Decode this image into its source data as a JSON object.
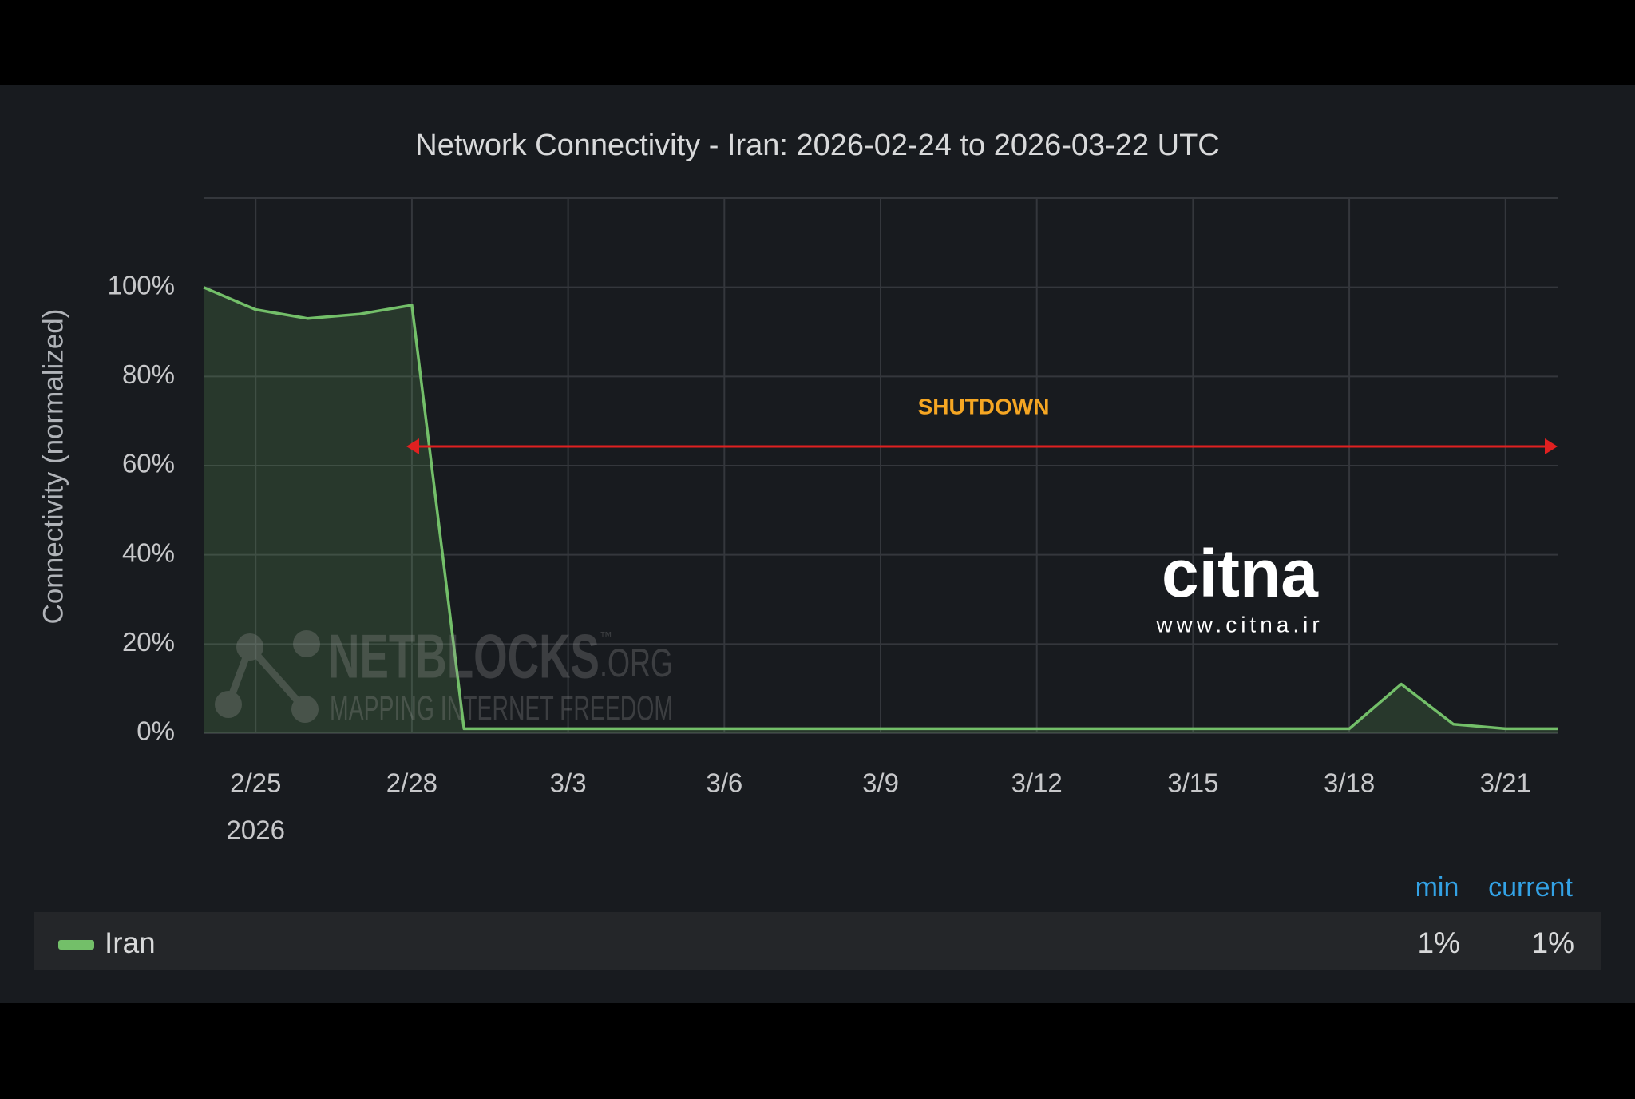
{
  "chart_data": {
    "type": "line",
    "title": "Network Connectivity - Iran: 2026-02-24 to 2026-03-22 UTC",
    "y_label": "Connectivity (normalized)",
    "x": [
      "2026-02-24",
      "2026-02-25",
      "2026-02-26",
      "2026-02-27",
      "2026-02-28",
      "2026-03-01",
      "2026-03-02",
      "2026-03-03",
      "2026-03-04",
      "2026-03-05",
      "2026-03-06",
      "2026-03-07",
      "2026-03-08",
      "2026-03-09",
      "2026-03-10",
      "2026-03-11",
      "2026-03-12",
      "2026-03-13",
      "2026-03-14",
      "2026-03-15",
      "2026-03-16",
      "2026-03-17",
      "2026-03-18",
      "2026-03-19",
      "2026-03-20",
      "2026-03-21",
      "2026-03-22"
    ],
    "series": [
      {
        "name": "Iran",
        "color": "#73bf69",
        "values": [
          100,
          95,
          93,
          94,
          96,
          1,
          1,
          1,
          1,
          1,
          1,
          1,
          1,
          1,
          1,
          1,
          1,
          1,
          1,
          1,
          1,
          1,
          1,
          11,
          2,
          1,
          1
        ]
      }
    ],
    "xlim": [
      "2026-02-24",
      "2026-03-22"
    ],
    "xticks": [
      {
        "value": "2026-02-25",
        "label": "2/25"
      },
      {
        "value": "2026-02-28",
        "label": "2/28"
      },
      {
        "value": "2026-03-03",
        "label": "3/3"
      },
      {
        "value": "2026-03-06",
        "label": "3/6"
      },
      {
        "value": "2026-03-09",
        "label": "3/9"
      },
      {
        "value": "2026-03-12",
        "label": "3/12"
      },
      {
        "value": "2026-03-15",
        "label": "3/15"
      },
      {
        "value": "2026-03-18",
        "label": "3/18"
      },
      {
        "value": "2026-03-21",
        "label": "3/21"
      }
    ],
    "x_year_label": "2026",
    "ylim": [
      0,
      120
    ],
    "yticks": [
      {
        "value": 0,
        "label": "0%"
      },
      {
        "value": 20,
        "label": "20%"
      },
      {
        "value": 40,
        "label": "40%"
      },
      {
        "value": 60,
        "label": "60%"
      },
      {
        "value": 80,
        "label": "80%"
      },
      {
        "value": 100,
        "label": "100%"
      }
    ],
    "grid": true,
    "annotation": "SHUTDOWN",
    "legend_stats": {
      "headers": [
        "min",
        "current"
      ],
      "cells": [
        "1%",
        "1%"
      ]
    },
    "watermarks": {
      "netblocks": "NETBLOCKS",
      "org": ".ORG",
      "tm": "™",
      "tagline": "MAPPING INTERNET FREEDOM",
      "citna": "citna",
      "citna_url": "www.citna.ir"
    }
  }
}
